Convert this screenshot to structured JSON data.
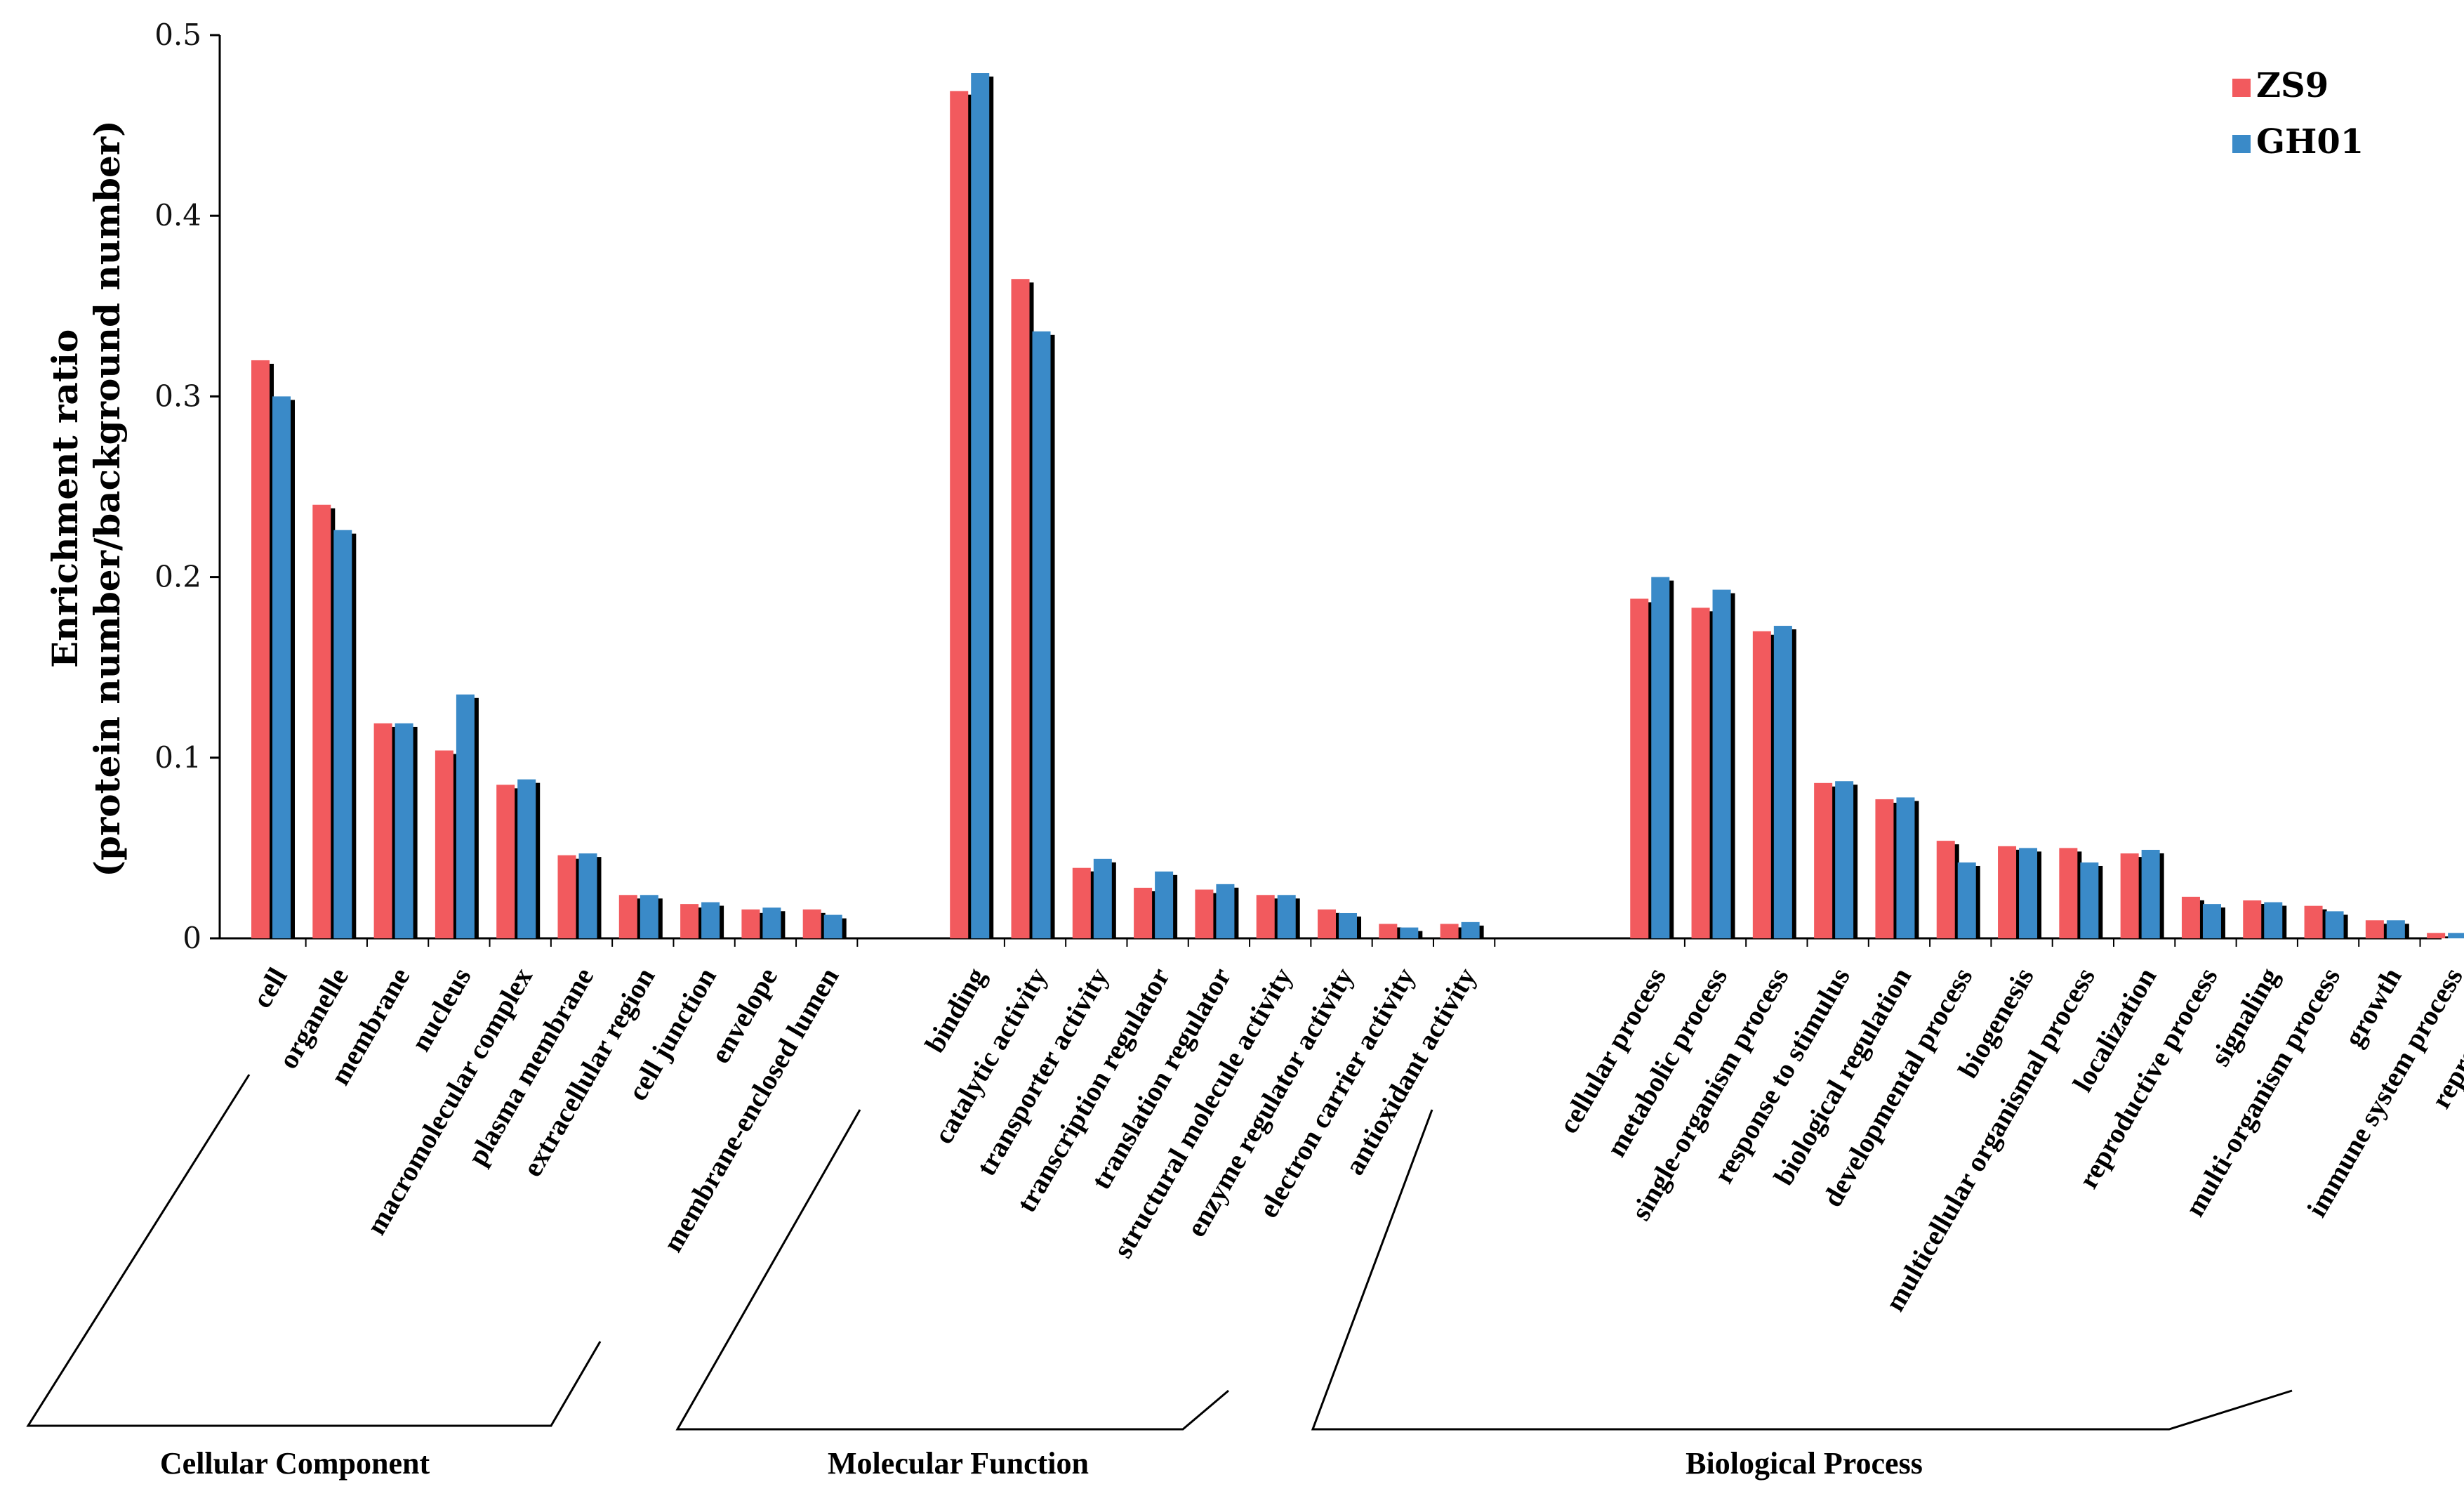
{
  "chart_data": {
    "type": "bar",
    "title": "",
    "xlabel": "",
    "ylabel_line1": "Enrichment ratio",
    "ylabel_line2": "(protein number/background number)",
    "ylim": [
      0,
      0.5
    ],
    "yticks": [
      "0",
      "0.1",
      "0.2",
      "0.3",
      "0.4",
      "0.5"
    ],
    "legend_position": "top-right",
    "groups": [
      {
        "name": "Cellular Component",
        "categories": [
          "cell",
          "organelle",
          "membrane",
          "nucleus",
          "macromolecular complex",
          "plasma membrane",
          "extracellular region",
          "cell junction",
          "envelope",
          "membrane-enclosed lumen"
        ]
      },
      {
        "name": "Molecular Function",
        "categories": [
          "binding",
          "catalytic activity",
          "transporter activity",
          "transcription regulator",
          "translation regulator",
          "structural molecule activity",
          "enzyme regulator activity",
          "electron carrier activity",
          "antioxidant activity"
        ]
      },
      {
        "name": "Biological Process",
        "categories": [
          "cellular process",
          "metabolic process",
          "single-organism process",
          "response to stimulus",
          "biological regulation",
          "developmental process",
          "biogenesis",
          "multicellular organismal process",
          "localization",
          "reproductive process",
          "signaling",
          "multi-organism process",
          "growth",
          "immune system process",
          "reproduction"
        ]
      }
    ],
    "series": [
      {
        "name": "ZS9",
        "color": "#f25a5e",
        "values": [
          [
            0.32,
            0.24,
            0.119,
            0.104,
            0.085,
            0.046,
            0.024,
            0.019,
            0.016,
            0.016
          ],
          [
            0.469,
            0.365,
            0.039,
            0.028,
            0.027,
            0.024,
            0.016,
            0.008,
            0.008
          ],
          [
            0.188,
            0.183,
            0.17,
            0.086,
            0.077,
            0.054,
            0.051,
            0.05,
            0.047,
            0.023,
            0.021,
            0.018,
            0.01,
            0.003,
            0.003
          ]
        ]
      },
      {
        "name": "GH01",
        "color": "#3a8ac8",
        "values": [
          [
            0.3,
            0.226,
            0.119,
            0.135,
            0.088,
            0.047,
            0.024,
            0.02,
            0.017,
            0.013
          ],
          [
            0.479,
            0.336,
            0.044,
            0.037,
            0.03,
            0.024,
            0.014,
            0.006,
            0.009
          ],
          [
            0.2,
            0.193,
            0.173,
            0.087,
            0.078,
            0.042,
            0.05,
            0.042,
            0.049,
            0.019,
            0.02,
            0.015,
            0.01,
            0.003,
            0.003
          ]
        ]
      }
    ]
  }
}
